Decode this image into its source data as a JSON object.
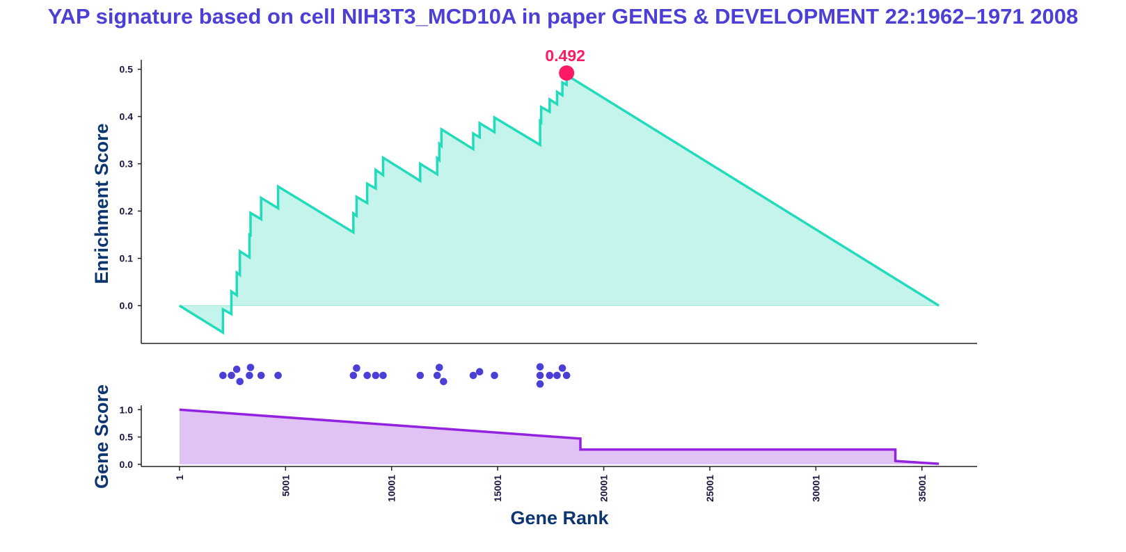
{
  "chart_data": {
    "type": "line",
    "title": "YAP signature based on cell NIH3T3_MCD10A in paper GENES & DEVELOPMENT 22:1962–1971 2008",
    "colors": {
      "title": "#4b3fd6",
      "es_line": "#22dbbb",
      "es_fill": "#c5f4ec",
      "peak_marker": "#ff1a66",
      "hits": "#4b3fd6",
      "gene_score_line": "#9222e0",
      "gene_score_fill": "#e0c2f5",
      "axis": "#222222",
      "tick_text": "#1f1340",
      "axis_label": "#0d3570"
    },
    "enrichment": {
      "ylabel": "Enrichment Score",
      "yticks": [
        "0.0",
        "0.1",
        "0.2",
        "0.3",
        "0.4",
        "0.5"
      ],
      "ylim": [
        -0.08,
        0.52
      ],
      "peak": {
        "x": 18250,
        "y": 0.492,
        "label": "0.492"
      },
      "points": [
        [
          1,
          0.0
        ],
        [
          2050,
          -0.057
        ],
        [
          2050,
          -0.008
        ],
        [
          2450,
          -0.018
        ],
        [
          2450,
          0.03
        ],
        [
          2700,
          0.022
        ],
        [
          2700,
          0.07
        ],
        [
          2850,
          0.065
        ],
        [
          2850,
          0.115
        ],
        [
          3300,
          0.102
        ],
        [
          3300,
          0.15
        ],
        [
          3350,
          0.149
        ],
        [
          3350,
          0.196
        ],
        [
          3850,
          0.183
        ],
        [
          3850,
          0.228
        ],
        [
          4650,
          0.206
        ],
        [
          4650,
          0.252
        ],
        [
          8200,
          0.155
        ],
        [
          8200,
          0.195
        ],
        [
          8350,
          0.19
        ],
        [
          8350,
          0.23
        ],
        [
          8850,
          0.217
        ],
        [
          8850,
          0.258
        ],
        [
          9250,
          0.248
        ],
        [
          9250,
          0.287
        ],
        [
          9600,
          0.276
        ],
        [
          9600,
          0.313
        ],
        [
          11350,
          0.264
        ],
        [
          11350,
          0.3
        ],
        [
          12150,
          0.278
        ],
        [
          12150,
          0.312
        ],
        [
          12250,
          0.308
        ],
        [
          12250,
          0.342
        ],
        [
          12350,
          0.338
        ],
        [
          12350,
          0.373
        ],
        [
          13850,
          0.331
        ],
        [
          13850,
          0.364
        ],
        [
          14150,
          0.356
        ],
        [
          14150,
          0.386
        ],
        [
          14850,
          0.367
        ],
        [
          14850,
          0.398
        ],
        [
          17000,
          0.34
        ],
        [
          17000,
          0.39
        ],
        [
          17050,
          0.388
        ],
        [
          17050,
          0.42
        ],
        [
          17450,
          0.41
        ],
        [
          17450,
          0.436
        ],
        [
          17800,
          0.426
        ],
        [
          17800,
          0.452
        ],
        [
          18050,
          0.445
        ],
        [
          18050,
          0.472
        ],
        [
          18250,
          0.467
        ],
        [
          18250,
          0.492
        ],
        [
          18350,
          0.485
        ],
        [
          35800,
          0.0
        ]
      ]
    },
    "hits": [
      {
        "x": 2050,
        "y": 0
      },
      {
        "x": 2450,
        "y": 0
      },
      {
        "x": 2700,
        "y": 1
      },
      {
        "x": 2850,
        "y": -1
      },
      {
        "x": 3300,
        "y": 0
      },
      {
        "x": 3350,
        "y": 1.3
      },
      {
        "x": 3850,
        "y": 0
      },
      {
        "x": 4650,
        "y": 0
      },
      {
        "x": 8200,
        "y": 0
      },
      {
        "x": 8350,
        "y": 1.2
      },
      {
        "x": 8850,
        "y": 0
      },
      {
        "x": 9250,
        "y": 0
      },
      {
        "x": 9600,
        "y": 0
      },
      {
        "x": 11350,
        "y": 0
      },
      {
        "x": 12150,
        "y": 0
      },
      {
        "x": 12250,
        "y": 1.3
      },
      {
        "x": 12450,
        "y": -1
      },
      {
        "x": 13850,
        "y": 0
      },
      {
        "x": 14150,
        "y": 0.6
      },
      {
        "x": 14850,
        "y": 0
      },
      {
        "x": 17000,
        "y": 1.4
      },
      {
        "x": 17000,
        "y": 0
      },
      {
        "x": 17000,
        "y": -1.4
      },
      {
        "x": 17450,
        "y": 0
      },
      {
        "x": 17800,
        "y": 0
      },
      {
        "x": 18050,
        "y": 1.2
      },
      {
        "x": 18250,
        "y": 0
      }
    ],
    "gene_score": {
      "ylabel": "Gene Score",
      "yticks": [
        "0.0",
        "0.5",
        "1.0"
      ],
      "ylim": [
        -0.04,
        1.08
      ],
      "points": [
        [
          1,
          1.0
        ],
        [
          18900,
          0.47
        ],
        [
          18900,
          0.27
        ],
        [
          33750,
          0.27
        ],
        [
          33750,
          0.06
        ],
        [
          35800,
          0.01
        ]
      ]
    },
    "xlabel": "Gene Rank",
    "xticks": [
      "1",
      "5001",
      "10001",
      "15001",
      "20001",
      "25001",
      "30001",
      "35001"
    ],
    "xlim": [
      -1800,
      37600
    ]
  }
}
